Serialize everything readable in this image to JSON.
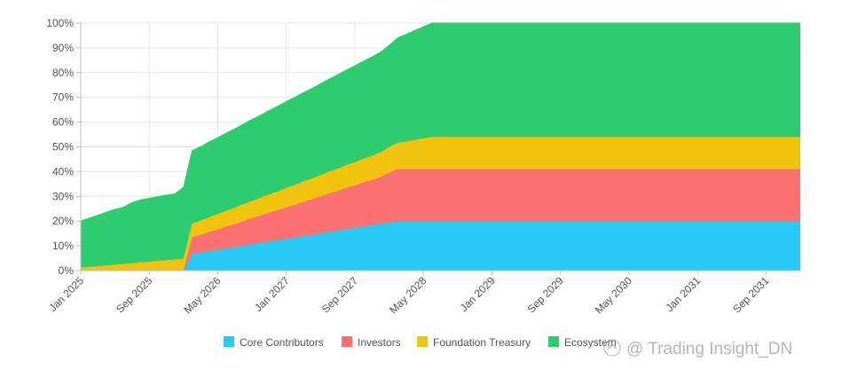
{
  "chart_data": {
    "type": "area",
    "stacked": true,
    "x_labels": [
      "Jan 2025",
      "Sep 2025",
      "May 2026",
      "Jan 2027",
      "Sep 2027",
      "May 2028",
      "Jan 2029",
      "Sep 2029",
      "May 2030",
      "Jan 2031",
      "Sep 2031"
    ],
    "x_start": "2025-01",
    "x_end": "2032-01",
    "ylim": [
      0,
      100
    ],
    "y_ticks": [
      "0%",
      "10%",
      "20%",
      "30%",
      "40%",
      "50%",
      "60%",
      "70%",
      "80%",
      "90%",
      "100%"
    ],
    "grid": true,
    "legend_position": "bottom",
    "series": [
      {
        "name": "Core Contributors",
        "color": "#29c9f5",
        "points": [
          [
            "2025-01",
            0
          ],
          [
            "2025-02",
            0
          ],
          [
            "2025-03",
            0
          ],
          [
            "2025-04",
            0
          ],
          [
            "2025-05",
            0
          ],
          [
            "2025-06",
            0
          ],
          [
            "2025-07",
            0
          ],
          [
            "2025-08",
            0
          ],
          [
            "2025-09",
            0
          ],
          [
            "2025-10",
            0
          ],
          [
            "2025-11",
            0
          ],
          [
            "2025-12",
            0
          ],
          [
            "2026-01",
            0
          ],
          [
            "2026-02",
            6.7
          ],
          [
            "2026-03",
            7.2
          ],
          [
            "2026-04",
            7.8
          ],
          [
            "2026-05",
            8.3
          ],
          [
            "2026-06",
            8.9
          ],
          [
            "2026-07",
            9.4
          ],
          [
            "2026-08",
            10
          ],
          [
            "2026-09",
            10.6
          ],
          [
            "2026-10",
            11.1
          ],
          [
            "2026-11",
            11.7
          ],
          [
            "2026-12",
            12.2
          ],
          [
            "2027-01",
            12.8
          ],
          [
            "2027-02",
            13.3
          ],
          [
            "2027-03",
            13.9
          ],
          [
            "2027-04",
            14.4
          ],
          [
            "2027-05",
            15
          ],
          [
            "2027-06",
            15.6
          ],
          [
            "2027-07",
            16.1
          ],
          [
            "2027-08",
            16.7
          ],
          [
            "2027-09",
            17.2
          ],
          [
            "2027-10",
            17.8
          ],
          [
            "2027-11",
            18.3
          ],
          [
            "2027-12",
            18.9
          ],
          [
            "2028-01",
            19.4
          ],
          [
            "2028-02",
            20
          ],
          [
            "2028-06",
            20
          ],
          [
            "2029-01",
            20
          ],
          [
            "2030-01",
            20
          ],
          [
            "2031-01",
            20
          ],
          [
            "2032-01",
            20
          ]
        ]
      },
      {
        "name": "Investors",
        "color": "#fb7070",
        "points": [
          [
            "2025-01",
            0
          ],
          [
            "2025-12",
            0
          ],
          [
            "2026-01",
            0
          ],
          [
            "2026-02",
            6.7
          ],
          [
            "2026-03",
            7.2
          ],
          [
            "2026-04",
            7.8
          ],
          [
            "2026-05",
            8.3
          ],
          [
            "2026-06",
            8.9
          ],
          [
            "2026-07",
            9.4
          ],
          [
            "2026-08",
            10
          ],
          [
            "2026-09",
            10.6
          ],
          [
            "2026-10",
            11.1
          ],
          [
            "2026-11",
            11.7
          ],
          [
            "2026-12",
            12.2
          ],
          [
            "2027-01",
            12.8
          ],
          [
            "2027-02",
            13.3
          ],
          [
            "2027-03",
            13.9
          ],
          [
            "2027-04",
            14.4
          ],
          [
            "2027-05",
            15
          ],
          [
            "2027-06",
            15.6
          ],
          [
            "2027-07",
            16.1
          ],
          [
            "2027-08",
            16.7
          ],
          [
            "2027-09",
            17.2
          ],
          [
            "2027-10",
            17.8
          ],
          [
            "2027-11",
            18.3
          ],
          [
            "2027-12",
            18.9
          ],
          [
            "2028-01",
            20.2
          ],
          [
            "2028-02",
            21
          ],
          [
            "2028-06",
            21
          ],
          [
            "2029-01",
            21
          ],
          [
            "2030-01",
            21
          ],
          [
            "2031-01",
            21
          ],
          [
            "2032-01",
            21
          ]
        ]
      },
      {
        "name": "Foundation Treasury",
        "color": "#f0c30f",
        "points": [
          [
            "2025-01",
            1.2
          ],
          [
            "2025-03",
            1.8
          ],
          [
            "2025-05",
            2.4
          ],
          [
            "2025-07",
            3
          ],
          [
            "2025-09",
            3.6
          ],
          [
            "2025-11",
            4.2
          ],
          [
            "2026-01",
            4.8
          ],
          [
            "2026-02",
            5.6
          ],
          [
            "2026-03",
            5.8
          ],
          [
            "2026-05",
            6.2
          ],
          [
            "2026-07",
            6.6
          ],
          [
            "2026-09",
            7
          ],
          [
            "2026-11",
            7.4
          ],
          [
            "2027-01",
            7.8
          ],
          [
            "2027-03",
            8.2
          ],
          [
            "2027-05",
            8.6
          ],
          [
            "2027-07",
            9
          ],
          [
            "2027-09",
            9.4
          ],
          [
            "2027-11",
            9.8
          ],
          [
            "2028-01",
            10.2
          ],
          [
            "2028-02",
            10.6
          ],
          [
            "2028-06",
            13
          ],
          [
            "2029-01",
            13
          ],
          [
            "2030-01",
            13
          ],
          [
            "2031-01",
            13
          ],
          [
            "2032-01",
            13
          ]
        ]
      },
      {
        "name": "Ecosystem",
        "color": "#2ecc71",
        "points": [
          [
            "2025-01",
            18.8
          ],
          [
            "2025-02",
            19.7
          ],
          [
            "2025-03",
            20.6
          ],
          [
            "2025-04",
            21.5
          ],
          [
            "2025-05",
            22.4
          ],
          [
            "2025-06",
            22.9
          ],
          [
            "2025-07",
            24.5
          ],
          [
            "2025-08",
            25.3
          ],
          [
            "2025-09",
            25.6
          ],
          [
            "2025-10",
            26
          ],
          [
            "2025-11",
            26.3
          ],
          [
            "2025-12",
            26.5
          ],
          [
            "2026-01",
            28.9
          ],
          [
            "2026-02",
            29.4
          ],
          [
            "2026-03",
            29.9
          ],
          [
            "2026-04",
            30.4
          ],
          [
            "2026-05",
            30.9
          ],
          [
            "2026-06",
            31.4
          ],
          [
            "2026-07",
            31.9
          ],
          [
            "2026-08",
            32.4
          ],
          [
            "2026-09",
            32.9
          ],
          [
            "2026-10",
            33.4
          ],
          [
            "2026-11",
            33.9
          ],
          [
            "2026-12",
            34.4
          ],
          [
            "2027-01",
            34.9
          ],
          [
            "2027-02",
            35.4
          ],
          [
            "2027-03",
            35.9
          ],
          [
            "2027-04",
            36.4
          ],
          [
            "2027-05",
            36.9
          ],
          [
            "2027-06",
            37.4
          ],
          [
            "2027-07",
            37.9
          ],
          [
            "2027-08",
            38.4
          ],
          [
            "2027-09",
            38.9
          ],
          [
            "2027-10",
            39.4
          ],
          [
            "2027-11",
            39.9
          ],
          [
            "2027-12",
            40.4
          ],
          [
            "2028-01",
            41.2
          ],
          [
            "2028-02",
            42.4
          ],
          [
            "2028-06",
            46
          ],
          [
            "2029-01",
            46
          ],
          [
            "2030-01",
            46
          ],
          [
            "2031-01",
            46
          ],
          [
            "2032-01",
            46
          ]
        ]
      }
    ]
  },
  "watermark": {
    "text": "@ Trading Insight_DN",
    "icon": "watermark-logo-icon"
  }
}
